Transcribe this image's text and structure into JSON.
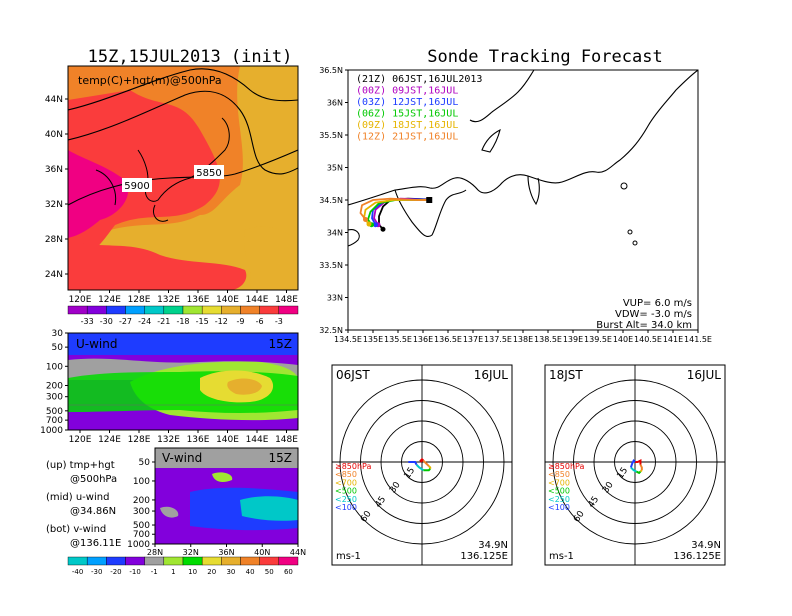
{
  "main_title": "15Z,15JUL2013 (init)",
  "forecast_title": "Sonde Tracking Forecast",
  "colors": {
    "temp_scale": [
      "#a000c8",
      "#8200dc",
      "#1e3cff",
      "#00a0ff",
      "#00c8c8",
      "#00d28c",
      "#a0e632",
      "#e6dc32",
      "#e6af2d",
      "#f08228",
      "#fa3c3c",
      "#f00082"
    ],
    "wind_scale": [
      "#00c8c8",
      "#00a0ff",
      "#1e3cff",
      "#8200dc",
      "#a0a0a0",
      "#a0e632",
      "#00dc00",
      "#e6dc32",
      "#e6af2d",
      "#f08228",
      "#fa3c3c",
      "#f00082"
    ]
  },
  "chart_data": [
    {
      "type": "heatmap",
      "panel": "upper-left",
      "title": "temp(C)+hgt(m)@500hPa",
      "x_ticks": [
        "120E",
        "124E",
        "128E",
        "132E",
        "136E",
        "140E",
        "144E",
        "148E"
      ],
      "y_ticks": [
        "24N",
        "28N",
        "32N",
        "36N",
        "40N",
        "44N"
      ],
      "contour_labels": [
        "5900",
        "5850"
      ],
      "colorbar_labels": [
        "-33",
        "-30",
        "-27",
        "-24",
        "-21",
        "-18",
        "-15",
        "-12",
        "-9",
        "-6",
        "-3"
      ]
    },
    {
      "type": "heatmap",
      "panel": "middle-left",
      "title": "U-wind",
      "time": "15Z",
      "x_ticks": [
        "120E",
        "124E",
        "128E",
        "132E",
        "136E",
        "140E",
        "144E",
        "148E"
      ],
      "y_ticks": [
        "30",
        "50",
        "100",
        "200",
        "300",
        "500",
        "700",
        "1000"
      ]
    },
    {
      "type": "heatmap",
      "panel": "lower-left",
      "title": "V-wind",
      "time": "15Z",
      "x_ticks": [
        "28N",
        "32N",
        "36N",
        "40N",
        "44N"
      ],
      "y_ticks": [
        "50",
        "100",
        "200",
        "300",
        "500",
        "700",
        "1000"
      ],
      "colorbar_labels": [
        "-40",
        "-30",
        "-20",
        "-10",
        "-1",
        "1",
        "10",
        "20",
        "30",
        "40",
        "50",
        "60"
      ]
    },
    {
      "type": "line",
      "panel": "track-map",
      "x_ticks": [
        "134.5E",
        "135E",
        "135.5E",
        "136E",
        "136.5E",
        "137E",
        "137.5E",
        "138E",
        "138.5E",
        "139E",
        "139.5E",
        "140E",
        "140.5E",
        "141E",
        "141.5E"
      ],
      "y_ticks": [
        "32.5N",
        "33N",
        "33.5N",
        "34N",
        "34.5N",
        "35N",
        "35.5N",
        "36N",
        "36.5N"
      ],
      "xlim": [
        134.5,
        141.5
      ],
      "ylim": [
        32.5,
        36.5
      ],
      "launch": {
        "lon": 136.125,
        "lat": 34.5
      },
      "series": [
        {
          "name": "(21Z) 06JST,16JUL2013",
          "color": "#000000",
          "x": [
            136.125,
            136.1,
            135.7,
            135.35,
            135.2,
            135.12,
            135.12,
            135.2
          ],
          "y": [
            34.5,
            34.51,
            34.52,
            34.5,
            34.4,
            34.25,
            34.12,
            34.05
          ]
        },
        {
          "name": "(00Z) 09JST,16JUL",
          "color": "#b000c0",
          "x": [
            136.125,
            136.0,
            135.55,
            135.25,
            135.05,
            135.02,
            135.1
          ],
          "y": [
            34.5,
            34.51,
            34.52,
            34.48,
            34.35,
            34.22,
            34.12
          ]
        },
        {
          "name": "(03Z) 12JST,16JUL",
          "color": "#1e3cff",
          "x": [
            136.125,
            136.0,
            135.5,
            135.2,
            135.0,
            134.98,
            135.05
          ],
          "y": [
            34.5,
            34.51,
            34.51,
            34.47,
            34.35,
            34.22,
            34.12
          ]
        },
        {
          "name": "(06Z) 15JST,16JUL",
          "color": "#00c800",
          "x": [
            136.125,
            136.0,
            135.45,
            135.12,
            134.95,
            134.9,
            134.97
          ],
          "y": [
            34.5,
            34.5,
            34.5,
            34.45,
            34.32,
            34.2,
            34.12
          ]
        },
        {
          "name": "(09Z) 18JST,16JUL",
          "color": "#e6b400",
          "x": [
            136.125,
            135.95,
            135.4,
            135.05,
            134.85,
            134.82,
            134.92
          ],
          "y": [
            34.5,
            34.5,
            34.5,
            34.46,
            34.35,
            34.22,
            34.13
          ]
        },
        {
          "name": "(12Z) 21JST,16JUL",
          "color": "#f08228",
          "x": [
            136.125,
            135.9,
            135.35,
            135.0,
            134.78,
            134.75,
            134.85
          ],
          "y": [
            34.5,
            34.5,
            34.52,
            34.5,
            34.42,
            34.3,
            34.2
          ]
        }
      ],
      "params": [
        "VUP= 6.0 m/s",
        "VDW= -3.0 m/s",
        "Burst Alt= 34.0 km"
      ]
    },
    {
      "type": "line",
      "panel": "hodograph-06",
      "time": "06JST",
      "date": "16JUL",
      "ring_labels": [
        "15",
        "30",
        "45",
        "60"
      ],
      "unit": "ms-1",
      "location": [
        "34.9N",
        "136.125E"
      ],
      "legend": [
        "≥850hPa",
        "<850",
        "<700",
        "<500",
        "<250",
        "<100"
      ],
      "legend_colors": [
        "#e60000",
        "#f08228",
        "#e6b400",
        "#00c800",
        "#00c8c8",
        "#1e3cff"
      ],
      "segments": [
        {
          "color": "#e60000",
          "u": [
            0,
            -1,
            0,
            1
          ],
          "v": [
            0,
            1,
            2,
            1
          ]
        },
        {
          "color": "#f08228",
          "u": [
            1,
            3,
            5
          ],
          "v": [
            1,
            -1,
            -3
          ]
        },
        {
          "color": "#e6b400",
          "u": [
            5,
            6,
            6
          ],
          "v": [
            -3,
            -4,
            -5
          ]
        },
        {
          "color": "#00c800",
          "u": [
            6,
            5,
            3,
            1
          ],
          "v": [
            -5,
            -6,
            -6,
            -6
          ]
        },
        {
          "color": "#00c8c8",
          "u": [
            1,
            -2,
            -4
          ],
          "v": [
            -6,
            -4,
            -2
          ]
        },
        {
          "color": "#1e3cff",
          "u": [
            -4,
            -5,
            -7,
            -10
          ],
          "v": [
            -2,
            0,
            0,
            0
          ]
        }
      ]
    },
    {
      "type": "line",
      "panel": "hodograph-18",
      "time": "18JST",
      "date": "16JUL",
      "ring_labels": [
        "15",
        "30",
        "45",
        "60"
      ],
      "unit": "ms-1",
      "location": [
        "34.9N",
        "136.125E"
      ],
      "legend": [
        "≥850hPa",
        "<850",
        "<700",
        "<500",
        "<250",
        "<100"
      ],
      "legend_colors": [
        "#e60000",
        "#f08228",
        "#e6b400",
        "#00c800",
        "#00c8c8",
        "#1e3cff"
      ],
      "segments": [
        {
          "color": "#e60000",
          "u": [
            0,
            2,
            4,
            4
          ],
          "v": [
            0,
            0,
            1,
            -2
          ]
        },
        {
          "color": "#f08228",
          "u": [
            4,
            5,
            5
          ],
          "v": [
            -2,
            -4,
            -6
          ]
        },
        {
          "color": "#e6b400",
          "u": [
            5,
            4
          ],
          "v": [
            -6,
            -7
          ]
        },
        {
          "color": "#00c800",
          "u": [
            4,
            3,
            1
          ],
          "v": [
            -7,
            -8,
            -7
          ]
        },
        {
          "color": "#00c8c8",
          "u": [
            1,
            -1,
            -3
          ],
          "v": [
            -7,
            -6,
            -4
          ]
        },
        {
          "color": "#1e3cff",
          "u": [
            -3,
            -2,
            -1,
            0
          ],
          "v": [
            -4,
            -1,
            1,
            0
          ]
        }
      ]
    }
  ],
  "notes": [
    {
      "head": "(up) tmp+hgt",
      "sub": "@500hPa"
    },
    {
      "head": "(mid) u-wind",
      "sub": "@34.86N"
    },
    {
      "head": "(bot) v-wind",
      "sub": "@136.11E"
    }
  ]
}
